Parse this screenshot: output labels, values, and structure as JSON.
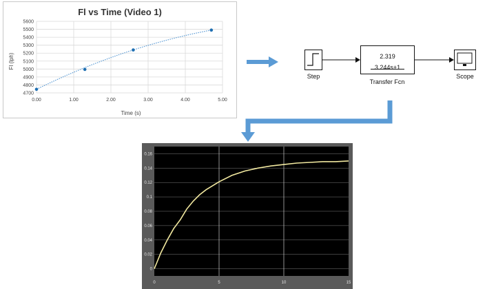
{
  "excel_chart": {
    "title": "Fl vs Time (Video 1)",
    "xlabel": "Time (s)",
    "ylabel": "Fl (lph)",
    "x_ticks": [
      "0.00",
      "1.00",
      "2.00",
      "3.00",
      "4.00",
      "5.00"
    ],
    "y_ticks": [
      "4700",
      "4800",
      "4900",
      "5000",
      "5100",
      "5200",
      "5300",
      "5400",
      "5500",
      "5600"
    ],
    "colors": {
      "line": "#5b9bd5",
      "marker": "#1f6fb2",
      "grid": "#d9d9d9"
    }
  },
  "simulink": {
    "step_label": "Step",
    "tf_numerator": "2.319",
    "tf_denominator": "3.244s+1",
    "tf_label": "Transfer Fcn",
    "scope_label": "Scope"
  },
  "scope": {
    "x_ticks": [
      "0",
      "5",
      "10",
      "15"
    ],
    "y_ticks": [
      "0",
      "0.02",
      "0.04",
      "0.06",
      "0.08",
      "0.1",
      "0.12",
      "0.14",
      "0.16"
    ],
    "colors": {
      "background": "#000000",
      "frame": "#5a5a5a",
      "grid": "#cfcfcf",
      "trace": "#f2e9a0"
    }
  },
  "flow_arrows": {
    "color": "#5b9bd5"
  },
  "chart_data": [
    {
      "type": "scatter",
      "title": "Fl vs Time (Video 1)",
      "xlabel": "Time (s)",
      "ylabel": "Fl (lph)",
      "xlim": [
        0,
        5
      ],
      "ylim": [
        4700,
        5600
      ],
      "grid": true,
      "points": [
        {
          "x": 0.0,
          "y": 4745
        },
        {
          "x": 1.3,
          "y": 4995
        },
        {
          "x": 2.6,
          "y": 5240
        },
        {
          "x": 4.7,
          "y": 5490
        }
      ]
    },
    {
      "type": "line",
      "title": "",
      "xlabel": "",
      "ylabel": "",
      "xlim": [
        0,
        15
      ],
      "ylim": [
        -0.01,
        0.17
      ],
      "grid": true,
      "series": [
        {
          "x": [
            0,
            0.5,
            1,
            1.5,
            2,
            2.5,
            3,
            3.5,
            4,
            5,
            6,
            7,
            8,
            9,
            10,
            11,
            12,
            13,
            14,
            15
          ],
          "y": [
            0,
            0.022,
            0.04,
            0.056,
            0.068,
            0.083,
            0.094,
            0.103,
            0.11,
            0.121,
            0.13,
            0.136,
            0.14,
            0.143,
            0.145,
            0.147,
            0.148,
            0.149,
            0.149,
            0.15
          ]
        }
      ]
    }
  ]
}
